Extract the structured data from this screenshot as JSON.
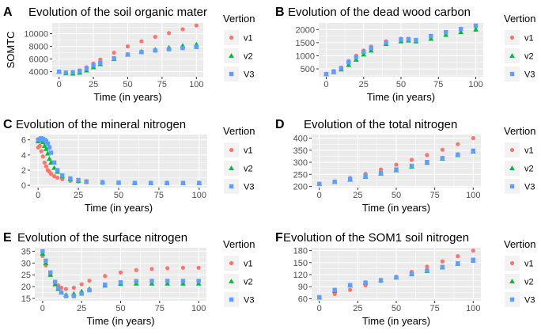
{
  "chart_data": [
    {
      "panel": "A",
      "type": "scatter",
      "title": "Evolution of the soil organic mater",
      "xlabel": "Time (in years)",
      "ylabel": "SOMTC",
      "xlim": [
        -5,
        105
      ],
      "ylim": [
        3200,
        11700
      ],
      "xticks": [
        0,
        25,
        50,
        75,
        100
      ],
      "yticks": [
        4000,
        6000,
        8000,
        10000
      ],
      "grid": true,
      "legend": {
        "title": "Vertion",
        "position": "right"
      },
      "series": [
        {
          "name": "v1",
          "color": "#F8766D",
          "marker": "circle",
          "x": [
            0,
            5,
            10,
            15,
            20,
            25,
            30,
            40,
            50,
            60,
            70,
            80,
            90,
            100
          ],
          "y": [
            4000,
            3900,
            3950,
            4200,
            4700,
            5300,
            5900,
            7000,
            8000,
            8800,
            9500,
            10100,
            10700,
            11300
          ]
        },
        {
          "name": "v2",
          "color": "#00BA38",
          "marker": "triangle",
          "x": [
            0,
            5,
            10,
            15,
            20,
            25,
            30,
            40,
            50,
            60,
            70,
            80,
            90,
            100
          ],
          "y": [
            4000,
            3750,
            3700,
            3850,
            4200,
            4700,
            5200,
            6000,
            6700,
            7200,
            7500,
            7800,
            8100,
            8300
          ]
        },
        {
          "name": "V3",
          "color": "#619CFF",
          "marker": "square",
          "x": [
            0,
            5,
            10,
            15,
            20,
            25,
            30,
            40,
            50,
            60,
            70,
            80,
            90,
            100
          ],
          "y": [
            4000,
            3850,
            3900,
            4100,
            4500,
            5000,
            5400,
            6100,
            6700,
            7100,
            7350,
            7550,
            7750,
            7900
          ]
        }
      ]
    },
    {
      "panel": "B",
      "type": "scatter",
      "title": "Evolution of the dead wood carbon",
      "xlabel": "Time (in years)",
      "ylabel": "",
      "xlim": [
        -5,
        105
      ],
      "ylim": [
        200,
        2250
      ],
      "xticks": [
        0,
        25,
        50,
        75,
        100
      ],
      "yticks": [
        500,
        1000,
        1500,
        2000
      ],
      "grid": true,
      "legend": {
        "title": "Vertion",
        "position": "right"
      },
      "series": [
        {
          "name": "v1",
          "color": "#F8766D",
          "marker": "circle",
          "x": [
            0,
            5,
            10,
            15,
            20,
            25,
            30,
            40,
            50,
            55,
            60,
            70,
            80,
            90,
            100
          ],
          "y": [
            300,
            420,
            550,
            800,
            1000,
            1200,
            1350,
            1550,
            1650,
            1650,
            1600,
            1750,
            1900,
            2000,
            2100
          ]
        },
        {
          "name": "v2",
          "color": "#00BA38",
          "marker": "triangle",
          "x": [
            0,
            5,
            10,
            15,
            20,
            25,
            30,
            40,
            50,
            55,
            60,
            70,
            80,
            90,
            100
          ],
          "y": [
            300,
            380,
            480,
            650,
            850,
            1050,
            1200,
            1450,
            1550,
            1580,
            1550,
            1650,
            1800,
            1900,
            2000
          ]
        },
        {
          "name": "V3",
          "color": "#619CFF",
          "marker": "square",
          "x": [
            0,
            5,
            10,
            15,
            20,
            25,
            30,
            40,
            50,
            55,
            60,
            70,
            80,
            90,
            100
          ],
          "y": [
            300,
            400,
            520,
            750,
            950,
            1150,
            1300,
            1500,
            1620,
            1630,
            1600,
            1750,
            1900,
            2020,
            2150
          ]
        }
      ]
    },
    {
      "panel": "C",
      "type": "scatter",
      "title": "Evolution of the mineral nitrogen",
      "xlabel": "Time (in years)",
      "ylabel": "",
      "xlim": [
        -5,
        105
      ],
      "ylim": [
        -0.3,
        6.7
      ],
      "xticks": [
        0,
        25,
        50,
        75,
        100
      ],
      "yticks": [
        0,
        2,
        4,
        6
      ],
      "grid": true,
      "legend": {
        "title": "Vertion",
        "position": "right"
      },
      "series": [
        {
          "name": "v1",
          "color": "#F8766D",
          "marker": "circle",
          "x": [
            0,
            1,
            2,
            3,
            4,
            5,
            6,
            7,
            8,
            10,
            12,
            15,
            20,
            25,
            30,
            40,
            50,
            60,
            70,
            80,
            90,
            100
          ],
          "y": [
            5.0,
            5.2,
            4.5,
            3.8,
            3.0,
            2.5,
            2.0,
            1.8,
            1.5,
            1.2,
            1.0,
            0.8,
            0.6,
            0.5,
            0.4,
            0.3,
            0.3,
            0.3,
            0.3,
            0.3,
            0.3,
            0.3
          ]
        },
        {
          "name": "v2",
          "color": "#00BA38",
          "marker": "triangle",
          "x": [
            0,
            1,
            2,
            3,
            4,
            5,
            6,
            7,
            8,
            10,
            12,
            15,
            20,
            25,
            30,
            40,
            50,
            60,
            70,
            80,
            90,
            100
          ],
          "y": [
            5.8,
            6.0,
            6.0,
            5.7,
            5.2,
            4.8,
            4.2,
            3.5,
            3.0,
            2.3,
            1.8,
            1.2,
            0.8,
            0.6,
            0.5,
            0.4,
            0.35,
            0.3,
            0.3,
            0.3,
            0.3,
            0.3
          ]
        },
        {
          "name": "V3",
          "color": "#619CFF",
          "marker": "square",
          "x": [
            0,
            1,
            2,
            3,
            4,
            5,
            6,
            7,
            8,
            10,
            12,
            15,
            20,
            25,
            30,
            40,
            50,
            60,
            70,
            80,
            90,
            100
          ],
          "y": [
            6.0,
            6.1,
            6.2,
            6.1,
            6.0,
            5.8,
            5.5,
            5.0,
            4.3,
            3.0,
            2.0,
            1.3,
            0.9,
            0.7,
            0.5,
            0.4,
            0.35,
            0.3,
            0.3,
            0.3,
            0.3,
            0.3
          ]
        }
      ]
    },
    {
      "panel": "D",
      "type": "scatter",
      "title": "Evolution of the total nitrogen",
      "xlabel": "Time (in years)",
      "ylabel": "",
      "xlim": [
        -5,
        105
      ],
      "ylim": [
        195,
        415
      ],
      "xticks": [
        0,
        25,
        50,
        75,
        100
      ],
      "yticks": [
        200,
        250,
        300,
        350,
        400
      ],
      "grid": true,
      "legend": {
        "title": "Vertion",
        "position": "right"
      },
      "series": [
        {
          "name": "v1",
          "color": "#F8766D",
          "marker": "circle",
          "x": [
            0,
            10,
            20,
            30,
            40,
            50,
            60,
            70,
            80,
            90,
            100
          ],
          "y": [
            210,
            220,
            235,
            252,
            270,
            290,
            310,
            330,
            352,
            375,
            400
          ]
        },
        {
          "name": "v2",
          "color": "#00BA38",
          "marker": "triangle",
          "x": [
            0,
            10,
            20,
            30,
            40,
            50,
            60,
            70,
            80,
            90,
            100
          ],
          "y": [
            210,
            218,
            228,
            240,
            253,
            267,
            282,
            298,
            315,
            330,
            345
          ]
        },
        {
          "name": "V3",
          "color": "#619CFF",
          "marker": "square",
          "x": [
            0,
            10,
            20,
            30,
            40,
            50,
            60,
            70,
            80,
            90,
            100
          ],
          "y": [
            210,
            219,
            230,
            242,
            255,
            270,
            285,
            301,
            317,
            332,
            348
          ]
        }
      ]
    },
    {
      "panel": "E",
      "type": "scatter",
      "title": "Evolution of the surface nitrogen",
      "xlabel": "Time (in years)",
      "ylabel": "",
      "xlim": [
        -5,
        105
      ],
      "ylim": [
        14,
        36.5
      ],
      "xticks": [
        0,
        25,
        50,
        75,
        100
      ],
      "yticks": [
        15,
        20,
        25,
        30,
        35
      ],
      "grid": true,
      "legend": {
        "title": "Vertion",
        "position": "right"
      },
      "series": [
        {
          "name": "v1",
          "color": "#F8766D",
          "marker": "circle",
          "x": [
            0,
            2,
            5,
            8,
            10,
            12,
            15,
            20,
            25,
            30,
            40,
            50,
            60,
            70,
            80,
            90,
            100
          ],
          "y": [
            33,
            29,
            25,
            22,
            20.5,
            19.5,
            19,
            19.5,
            21,
            22.5,
            24.5,
            26,
            27,
            27.5,
            27.8,
            28,
            28
          ]
        },
        {
          "name": "v2",
          "color": "#00BA38",
          "marker": "triangle",
          "x": [
            0,
            2,
            5,
            8,
            10,
            12,
            15,
            20,
            25,
            30,
            40,
            50,
            60,
            70,
            80,
            90,
            100
          ],
          "y": [
            34,
            30,
            25,
            21,
            19,
            17.5,
            16.5,
            17,
            18,
            19,
            20.5,
            21.2,
            21.3,
            21.3,
            21.3,
            21.3,
            21.3
          ]
        },
        {
          "name": "V3",
          "color": "#619CFF",
          "marker": "square",
          "x": [
            0,
            2,
            5,
            8,
            10,
            12,
            15,
            20,
            25,
            30,
            40,
            50,
            60,
            70,
            80,
            90,
            100
          ],
          "y": [
            35,
            31,
            26,
            22,
            19.5,
            17.5,
            16,
            16,
            17,
            18.5,
            20.8,
            21.8,
            22.3,
            22.4,
            22.4,
            22.4,
            22.4
          ]
        }
      ]
    },
    {
      "panel": "F",
      "type": "scatter",
      "title": "Evolution of the SOM1 soil nitrogen",
      "xlabel": "Time (in years)",
      "ylabel": "",
      "xlim": [
        -5,
        105
      ],
      "ylim": [
        55,
        187
      ],
      "xticks": [
        0,
        25,
        50,
        75,
        100
      ],
      "yticks": [
        60,
        90,
        120,
        150,
        180
      ],
      "grid": true,
      "legend": {
        "title": "Vertion",
        "position": "right"
      },
      "series": [
        {
          "name": "v1",
          "color": "#F8766D",
          "marker": "circle",
          "x": [
            0,
            10,
            20,
            30,
            40,
            50,
            60,
            70,
            80,
            90,
            100
          ],
          "y": [
            63,
            72,
            82,
            93,
            104,
            115,
            127,
            140,
            153,
            166,
            180
          ]
        },
        {
          "name": "v2",
          "color": "#00BA38",
          "marker": "triangle",
          "x": [
            0,
            10,
            20,
            30,
            40,
            50,
            60,
            70,
            80,
            90,
            100
          ],
          "y": [
            63,
            80,
            93,
            100,
            106,
            113,
            121,
            129,
            138,
            147,
            155
          ]
        },
        {
          "name": "V3",
          "color": "#619CFF",
          "marker": "square",
          "x": [
            0,
            10,
            20,
            30,
            40,
            50,
            60,
            70,
            80,
            90,
            100
          ],
          "y": [
            64,
            82,
            94,
            100,
            106,
            113,
            121,
            130,
            139,
            148,
            157
          ]
        }
      ]
    }
  ]
}
